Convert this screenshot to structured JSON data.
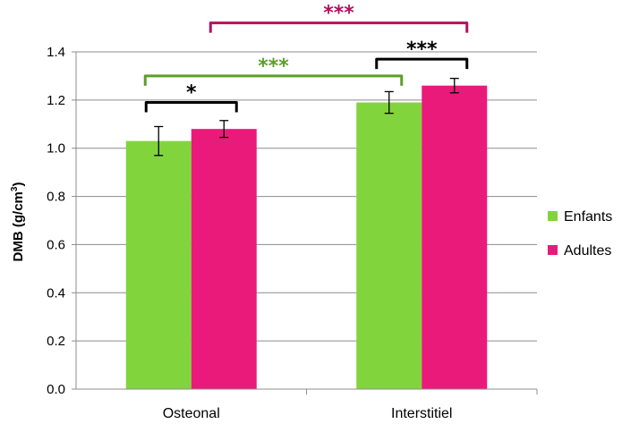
{
  "chart_data": {
    "type": "bar",
    "categories": [
      "Osteonal",
      "Interstitiel"
    ],
    "series": [
      {
        "name": "Enfants",
        "color": "#82d43d",
        "values": [
          1.03,
          1.19
        ],
        "errors": [
          0.06,
          0.045
        ]
      },
      {
        "name": "Adultes",
        "color": "#ea1a7b",
        "values": [
          1.08,
          1.26
        ],
        "errors": [
          0.035,
          0.03
        ]
      }
    ],
    "ylabel_main": "DMB (g/cm",
    "ylabel_sup": "3",
    "ylabel_end": ")",
    "ylim": [
      0,
      1.4
    ],
    "yticks": [
      "0.0",
      "0.2",
      "0.4",
      "0.6",
      "0.8",
      "1.0",
      "1.2",
      "1.4"
    ],
    "grid": true,
    "legend_position": "right",
    "significance": [
      {
        "label": "*",
        "color": "#000000",
        "from": "Osteonal-Enfants",
        "to": "Osteonal-Adultes",
        "level": 1.19
      },
      {
        "label": "***",
        "color": "#000000",
        "from": "Interstitiel-Enfants",
        "to": "Interstitiel-Adultes",
        "level": 1.37
      },
      {
        "label": "***",
        "color": "#5c9e2a",
        "from": "Osteonal-Enfants",
        "to": "Interstitiel-Enfants",
        "level": 1.3
      },
      {
        "label": "***",
        "color": "#b5105e",
        "from": "Osteonal-Adultes",
        "to": "Interstitiel-Adultes",
        "level": 1.52
      }
    ]
  }
}
